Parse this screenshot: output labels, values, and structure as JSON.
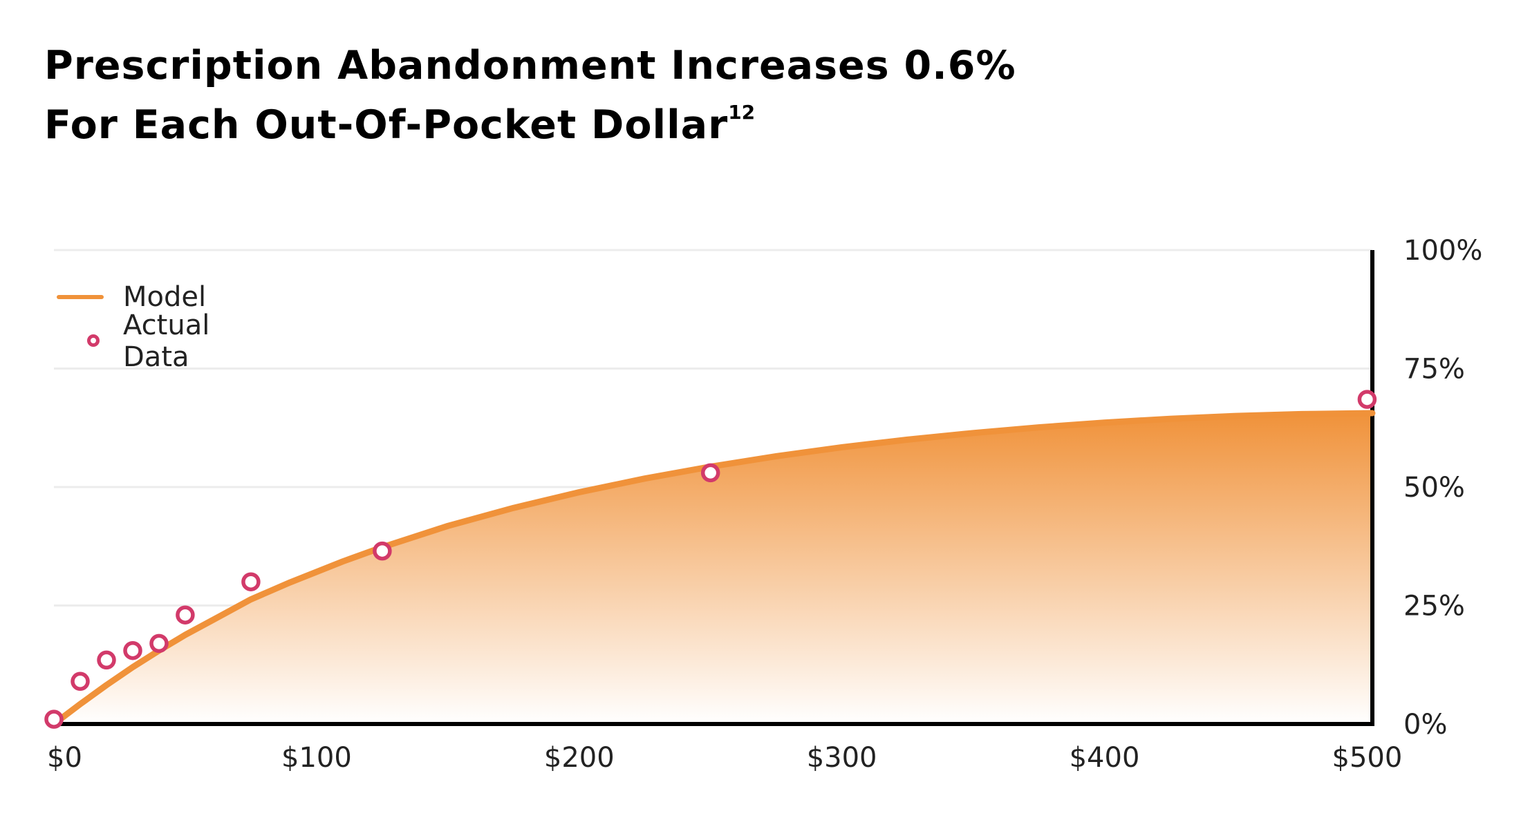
{
  "title": {
    "line1": "Prescription Abandonment Increases 0.6%",
    "line2": "For Each Out-Of-Pocket Dollar",
    "superscript": "12"
  },
  "colors": {
    "model_line": "#f0923a",
    "area_top": "#f0923a",
    "area_bottom": "#ffffff",
    "marker": "#d23a6a",
    "grid": "#ececec",
    "axis": "#000000"
  },
  "chart_data": {
    "type": "line",
    "title": "Prescription Abandonment Increases 0.6% For Each Out-Of-Pocket Dollar",
    "xlabel": "",
    "ylabel": "",
    "xlim": [
      0,
      502
    ],
    "ylim": [
      0,
      100
    ],
    "x_ticks": [
      {
        "value": 0,
        "label": "$0"
      },
      {
        "value": 100,
        "label": "$100"
      },
      {
        "value": 200,
        "label": "$200"
      },
      {
        "value": 300,
        "label": "$300"
      },
      {
        "value": 400,
        "label": "$400"
      },
      {
        "value": 500,
        "label": "$500"
      }
    ],
    "y_ticks": [
      {
        "value": 0,
        "label": "0%"
      },
      {
        "value": 25,
        "label": "25%"
      },
      {
        "value": 50,
        "label": "50%"
      },
      {
        "value": 75,
        "label": "75%"
      },
      {
        "value": 100,
        "label": "100%"
      }
    ],
    "y_axis_position": "right",
    "grid": true,
    "legend_position": "top-left",
    "series": [
      {
        "name": "Model",
        "kind": "area-line",
        "x": [
          0,
          10,
          20,
          30,
          40,
          50,
          60,
          75,
          90,
          110,
          125,
          150,
          175,
          200,
          225,
          250,
          275,
          300,
          325,
          350,
          375,
          400,
          425,
          450,
          475,
          502
        ],
        "y": [
          0,
          4.2,
          8.2,
          12.0,
          15.5,
          18.8,
          21.8,
          26.3,
          29.9,
          34.3,
          37.3,
          41.8,
          45.6,
          48.9,
          51.8,
          54.3,
          56.5,
          58.4,
          60.0,
          61.4,
          62.6,
          63.6,
          64.4,
          65.0,
          65.4,
          65.6
        ]
      },
      {
        "name": "Actual Data",
        "kind": "scatter",
        "x": [
          0,
          10,
          20,
          30,
          40,
          50,
          75,
          125,
          250,
          500
        ],
        "y": [
          1,
          9,
          13.5,
          15.5,
          17,
          23,
          30,
          36.5,
          53,
          68.5
        ]
      }
    ]
  }
}
